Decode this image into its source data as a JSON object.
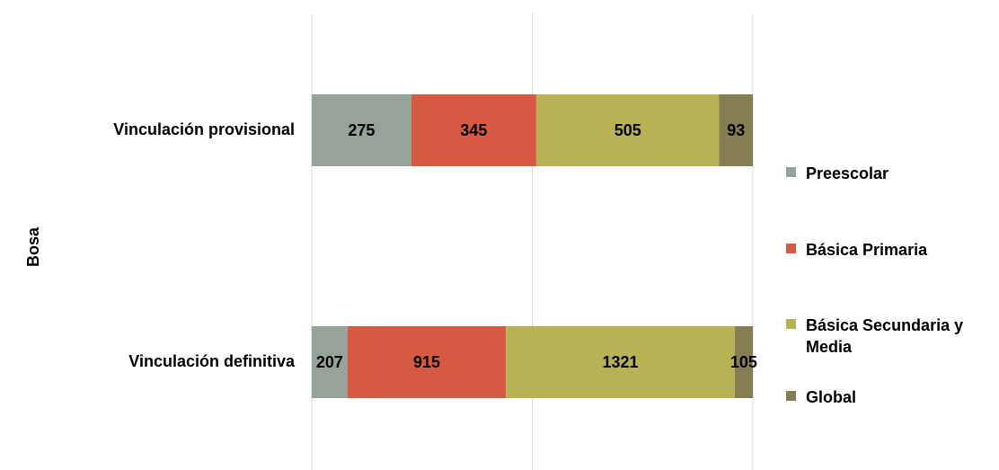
{
  "chart_data": {
    "type": "bar",
    "orientation": "horizontal",
    "stacked": "percent",
    "y_label": "Bosa",
    "categories": [
      "Vinculación provisional",
      "Vinculación definitiva"
    ],
    "series": [
      {
        "name": "Preescolar",
        "color": "#95a39a",
        "values": [
          275,
          207
        ]
      },
      {
        "name": "Básica Primaria",
        "color": "#d65a42",
        "values": [
          345,
          915
        ]
      },
      {
        "name": "Básica Secundaria y Media",
        "color": "#b8b255",
        "values": [
          505,
          1321
        ]
      },
      {
        "name": "Global",
        "color": "#857e55",
        "values": [
          93,
          105
        ]
      }
    ],
    "xlim": [
      0,
      100
    ],
    "xticks": [
      0,
      50,
      100
    ],
    "grid": true,
    "legend": "right"
  }
}
